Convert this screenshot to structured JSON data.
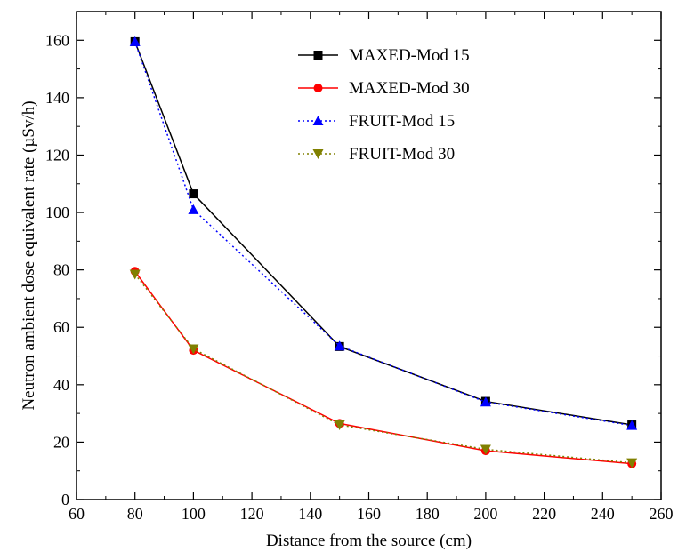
{
  "chart_data": {
    "type": "line",
    "xlabel": "Distance from the source (cm)",
    "ylabel": "Neutron ambient dose equivalent rate (µSv/h)",
    "xlim": [
      60,
      260
    ],
    "ylim": [
      0,
      170
    ],
    "xticks": [
      60,
      80,
      100,
      120,
      140,
      160,
      180,
      200,
      220,
      240,
      260
    ],
    "yticks": [
      0,
      20,
      40,
      60,
      80,
      100,
      120,
      140,
      160
    ],
    "grid": false,
    "legend_position": "top-right",
    "series": [
      {
        "name": "MAXED-Mod 15",
        "color": "#000000",
        "marker": "square",
        "line": "solid",
        "x": [
          80,
          100,
          150,
          200,
          250
        ],
        "values": [
          159.5,
          106.5,
          53.3,
          34.2,
          26.0
        ]
      },
      {
        "name": "MAXED-Mod 30",
        "color": "#ff0000",
        "marker": "circle",
        "line": "solid",
        "x": [
          80,
          100,
          150,
          200,
          250
        ],
        "values": [
          79.5,
          52.0,
          26.5,
          17.0,
          12.5
        ]
      },
      {
        "name": "FRUIT-Mod 15",
        "color": "#0000ff",
        "marker": "triangle-up",
        "line": "dotted",
        "x": [
          80,
          100,
          150,
          200,
          250
        ],
        "values": [
          159.5,
          101.0,
          53.5,
          34.0,
          25.8
        ]
      },
      {
        "name": "FRUIT-Mod 30",
        "color": "#808000",
        "marker": "triangle-down",
        "line": "dotted",
        "x": [
          80,
          100,
          150,
          200,
          250
        ],
        "values": [
          78.5,
          52.5,
          26.0,
          17.5,
          12.8
        ]
      }
    ]
  }
}
